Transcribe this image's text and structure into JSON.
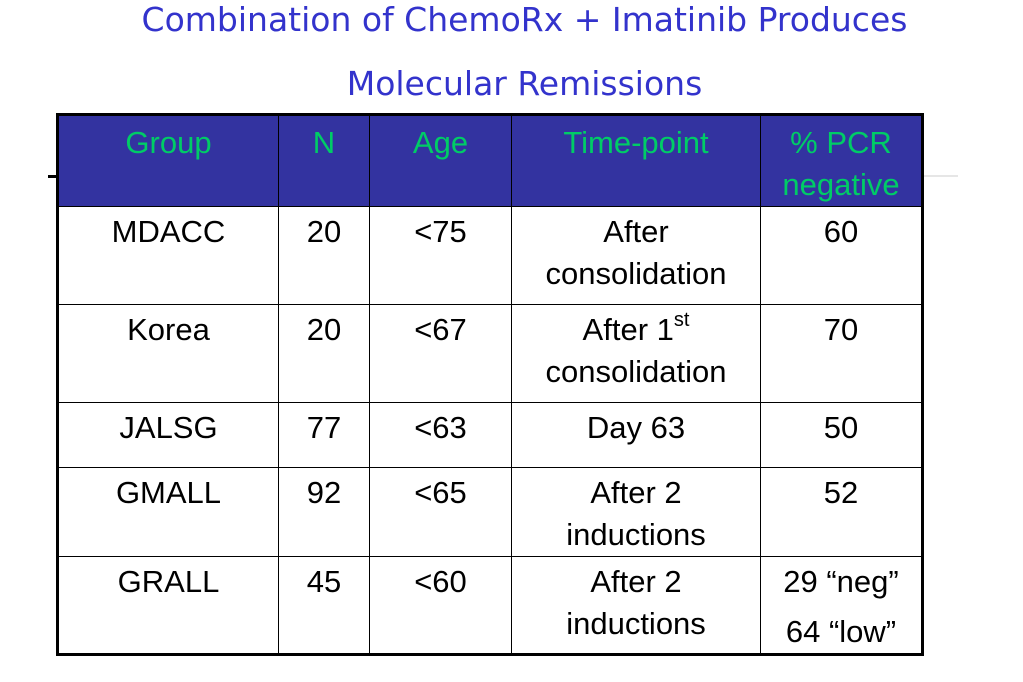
{
  "title": {
    "line1": "Combination of ChemoRx + Imatinib Produces",
    "line2": "Molecular Remissions"
  },
  "table": {
    "headers": {
      "group": "Group",
      "n": "N",
      "age": "Age",
      "timepoint": "Time-point",
      "pcr_line1": "% PCR",
      "pcr_line2": "negative"
    },
    "rows": [
      {
        "group": "MDACC",
        "n": "20",
        "age": "<75",
        "timepoint_line1": "After",
        "timepoint_line2": "consolidation",
        "pcr": "60"
      },
      {
        "group": "Korea",
        "n": "20",
        "age": "<67",
        "timepoint_line1": "After 1",
        "timepoint_sup": "st",
        "timepoint_line2": "consolidation",
        "pcr": "70"
      },
      {
        "group": "JALSG",
        "n": "77",
        "age": "<63",
        "timepoint_line1": "Day 63",
        "pcr": "50"
      },
      {
        "group": "GMALL",
        "n": "92",
        "age": "<65",
        "timepoint_line1": "After 2",
        "timepoint_line2": "inductions",
        "pcr": "52"
      },
      {
        "group": "GRALL",
        "n": "45",
        "age": "<60",
        "timepoint_line1": "After 2",
        "timepoint_line2": "inductions",
        "pcr_line1": "29 “neg”",
        "pcr_line2": "64 “low”"
      }
    ]
  },
  "colors": {
    "title": "#3333cc",
    "header_bg": "#3333a0",
    "header_text": "#00cc66",
    "body_text": "#000000",
    "border": "#000000"
  }
}
